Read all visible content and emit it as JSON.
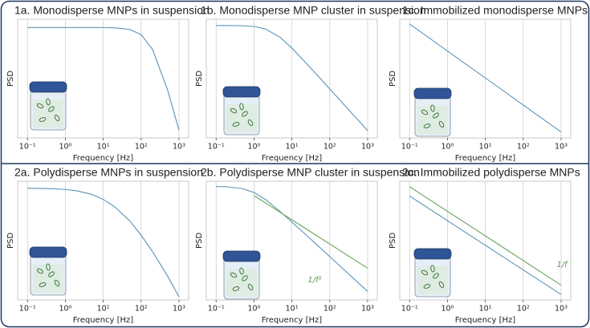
{
  "chart_data": [
    {
      "type": "line",
      "title": "1a. Monodisperse MNPs in suspension",
      "xlabel": "Frequency [Hz]",
      "ylabel": "PSD",
      "xscale": "log",
      "yscale": "log",
      "grid": true,
      "xlim": [
        0.055,
        1800
      ],
      "ylim": [
        0.03,
        1.3
      ],
      "xticks": [
        {
          "value": 0.1,
          "label": "10⁻¹"
        },
        {
          "value": 1,
          "label": "10⁰"
        },
        {
          "value": 10,
          "label": "10¹"
        },
        {
          "value": 100,
          "label": "10²"
        },
        {
          "value": 1000,
          "label": "10³"
        }
      ],
      "series": [
        {
          "color": "#5b93b8",
          "x": [
            0.1,
            0.2,
            0.5,
            1,
            2,
            5,
            10,
            20,
            50,
            100,
            200,
            500,
            1000
          ],
          "values": [
            1,
            1,
            1,
            1,
            1,
            1,
            0.998,
            0.99,
            0.94,
            0.8,
            0.5,
            0.138,
            0.0385
          ]
        }
      ]
    },
    {
      "type": "line",
      "title": "1b. Monodisperse MNP cluster in suspension",
      "xlabel": "Frequency [Hz]",
      "ylabel": "PSD",
      "xscale": "log",
      "yscale": "log",
      "grid": true,
      "xlim": [
        0.055,
        1800
      ],
      "ylim": [
        4e-06,
        2
      ],
      "xticks": [
        {
          "value": 0.1,
          "label": "10⁻¹"
        },
        {
          "value": 1,
          "label": "10⁰"
        },
        {
          "value": 10,
          "label": "10¹"
        },
        {
          "value": 100,
          "label": "10²"
        },
        {
          "value": 1000,
          "label": "10³"
        }
      ],
      "series": [
        {
          "color": "#5b93b8",
          "x": [
            0.1,
            0.2,
            0.5,
            1,
            2,
            5,
            10,
            20,
            50,
            100,
            200,
            500,
            1000
          ],
          "values": [
            1,
            0.996,
            0.973,
            0.9,
            0.692,
            0.265,
            0.0826,
            0.022,
            0.0036,
            0.0009,
            0.000225,
            3.6e-05,
            9e-06
          ]
        }
      ]
    },
    {
      "type": "line",
      "title": "1c. Immobilized monodisperse MNPs",
      "xlabel": "Frequency [Hz]",
      "ylabel": "PSD",
      "xscale": "log",
      "yscale": "log",
      "grid": true,
      "xlim": [
        0.055,
        1800
      ],
      "ylim": [
        0.0006,
        15
      ],
      "xticks": [
        {
          "value": 0.1,
          "label": "10⁻¹"
        },
        {
          "value": 1,
          "label": "10⁰"
        },
        {
          "value": 10,
          "label": "10¹"
        },
        {
          "value": 100,
          "label": "10²"
        },
        {
          "value": 1000,
          "label": "10³"
        }
      ],
      "series": [
        {
          "color": "#5b93b8",
          "x": [
            0.1,
            1000
          ],
          "values": [
            10,
            0.001
          ]
        }
      ]
    },
    {
      "type": "line",
      "title": "2a. Polydisperse MNPs in suspension",
      "xlabel": "Frequency [Hz]",
      "ylabel": "PSD",
      "xscale": "log",
      "yscale": "log",
      "grid": true,
      "xlim": [
        0.055,
        1800
      ],
      "ylim": [
        0.0015,
        1.5
      ],
      "xticks": [
        {
          "value": 0.1,
          "label": "10⁻¹"
        },
        {
          "value": 1,
          "label": "10⁰"
        },
        {
          "value": 10,
          "label": "10¹"
        },
        {
          "value": 100,
          "label": "10²"
        },
        {
          "value": 1000,
          "label": "10³"
        }
      ],
      "series": [
        {
          "color": "#5b93b8",
          "x": [
            0.1,
            0.2,
            0.5,
            1,
            2,
            5,
            10,
            20,
            50,
            100,
            200,
            500,
            1000
          ],
          "values": [
            1,
            0.99,
            0.97,
            0.93,
            0.86,
            0.7,
            0.52,
            0.34,
            0.15,
            0.065,
            0.025,
            0.006,
            0.0018
          ]
        }
      ]
    },
    {
      "type": "line",
      "title": "2b. Polydisperse MNP cluster in suspension",
      "xlabel": "Frequency [Hz]",
      "ylabel": "PSD",
      "xscale": "log",
      "yscale": "log",
      "grid": true,
      "xlim": [
        0.055,
        1800
      ],
      "ylim": [
        3e-07,
        2
      ],
      "xticks": [
        {
          "value": 0.1,
          "label": "10⁻¹"
        },
        {
          "value": 1,
          "label": "10⁰"
        },
        {
          "value": 10,
          "label": "10¹"
        },
        {
          "value": 100,
          "label": "10²"
        },
        {
          "value": 1000,
          "label": "10³"
        }
      ],
      "annotation": "1/f²",
      "series": [
        {
          "color": "#5b93b8",
          "x": [
            0.1,
            0.2,
            0.5,
            1,
            2,
            5,
            10,
            20,
            50,
            100,
            200,
            500,
            1000
          ],
          "values": [
            1,
            0.95,
            0.75,
            0.45,
            0.18,
            0.035,
            0.009,
            0.0023,
            0.00037,
            9.3e-05,
            2.3e-05,
            3.7e-06,
            9.3e-07
          ]
        },
        {
          "color": "#6aa45a",
          "x": [
            1,
            1000
          ],
          "values": [
            0.3,
            2e-05
          ]
        }
      ]
    },
    {
      "type": "line",
      "title": "2c. Immobilized polydisperse MNPs",
      "xlabel": "Frequency [Hz]",
      "ylabel": "PSD",
      "xscale": "log",
      "yscale": "log",
      "grid": true,
      "xlim": [
        0.055,
        1800
      ],
      "ylim": [
        3e-05,
        2
      ],
      "xticks": [
        {
          "value": 0.1,
          "label": "10⁻¹"
        },
        {
          "value": 1,
          "label": "10⁰"
        },
        {
          "value": 10,
          "label": "10¹"
        },
        {
          "value": 100,
          "label": "10²"
        },
        {
          "value": 1000,
          "label": "10³"
        }
      ],
      "annotation": "1/f",
      "series": [
        {
          "color": "#5b93b8",
          "x": [
            0.1,
            1000
          ],
          "values": [
            0.5,
            5e-05
          ]
        },
        {
          "color": "#6aa45a",
          "x": [
            0.1,
            1000
          ],
          "values": [
            1.2,
            0.00012
          ]
        }
      ]
    }
  ]
}
